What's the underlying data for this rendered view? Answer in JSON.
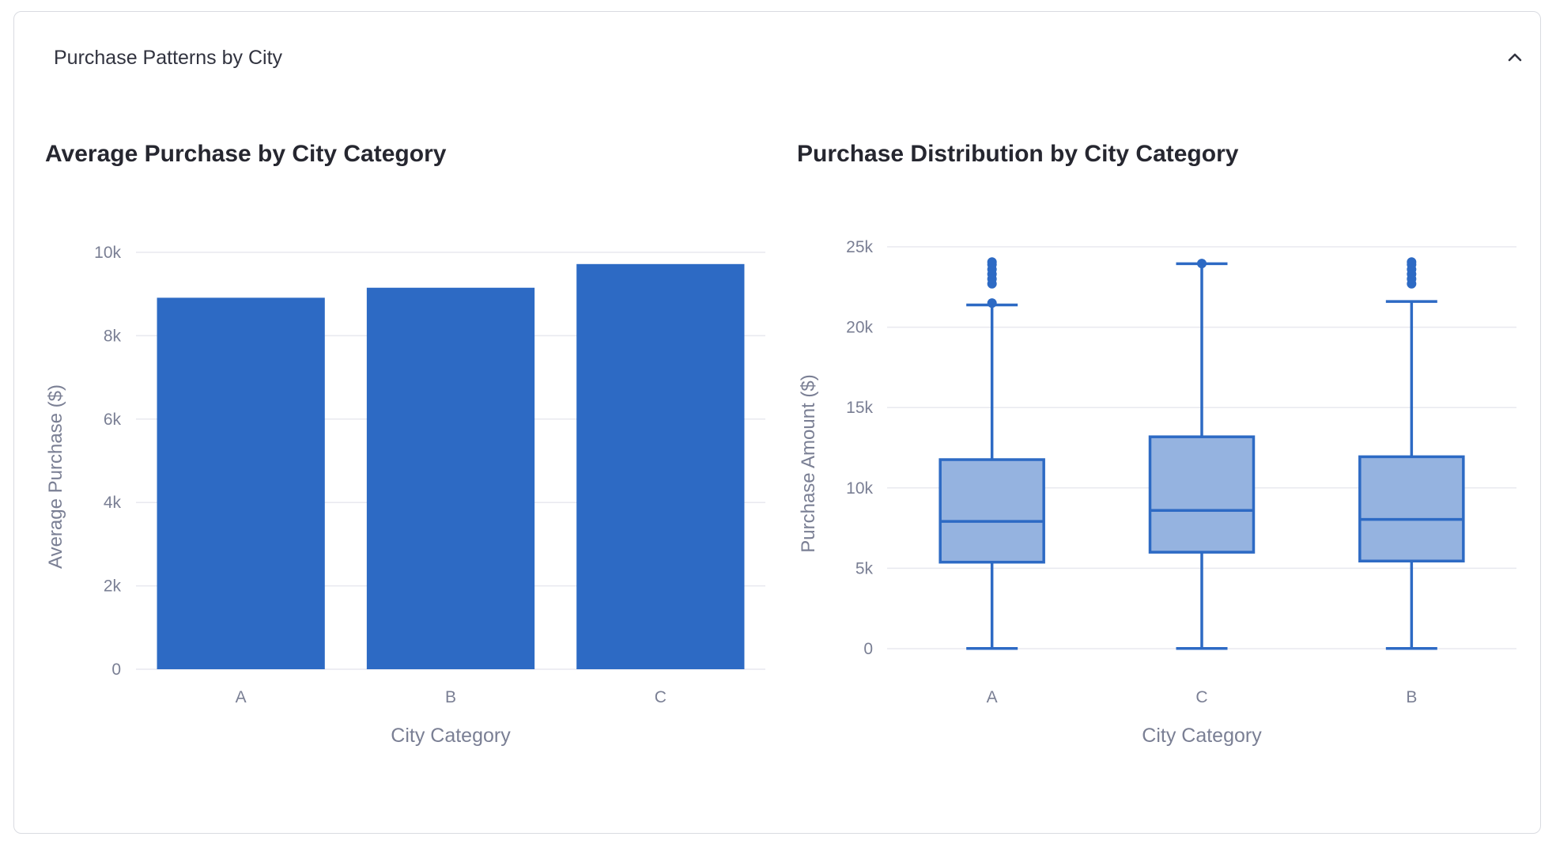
{
  "card": {
    "title": "Purchase Patterns by City",
    "collapse_icon": "chevron-up-icon"
  },
  "colors": {
    "bar": "#2d6ac4",
    "box_fill": "#95b3e0",
    "grid": "#e8e9ef",
    "text": "#7a7f94"
  },
  "chart_data": [
    {
      "type": "bar",
      "title": "Average Purchase by City Category",
      "xlabel": "City Category",
      "ylabel": "Average Purchase ($)",
      "categories": [
        "A",
        "B",
        "C"
      ],
      "values": [
        8911,
        9151,
        9719
      ],
      "ylim": [
        0,
        10000
      ],
      "yticks": [
        0,
        2000,
        4000,
        6000,
        8000,
        10000
      ],
      "ytick_labels": [
        "0",
        "2k",
        "4k",
        "6k",
        "8k",
        "10k"
      ],
      "grid": true
    },
    {
      "type": "box",
      "title": "Purchase Distribution by City Category",
      "xlabel": "City Category",
      "ylabel": "Purchase Amount ($)",
      "categories": [
        "A",
        "C",
        "B"
      ],
      "boxes": [
        {
          "min": 12,
          "q1": 5380,
          "median": 7920,
          "q3": 11760,
          "max": 21380,
          "outliers": [
            21500,
            22700,
            23000,
            23300,
            23600,
            23900,
            24050
          ]
        },
        {
          "min": 12,
          "q1": 6000,
          "median": 8600,
          "q3": 13180,
          "max": 23950,
          "outliers": [
            23960
          ]
        },
        {
          "min": 12,
          "q1": 5450,
          "median": 8040,
          "q3": 11940,
          "max": 21600,
          "outliers": [
            22700,
            23000,
            23300,
            23600,
            23900,
            24050
          ]
        }
      ],
      "ylim": [
        0,
        25000
      ],
      "yticks": [
        0,
        5000,
        10000,
        15000,
        20000,
        25000
      ],
      "ytick_labels": [
        "0",
        "5k",
        "10k",
        "15k",
        "20k",
        "25k"
      ],
      "grid": true
    }
  ]
}
